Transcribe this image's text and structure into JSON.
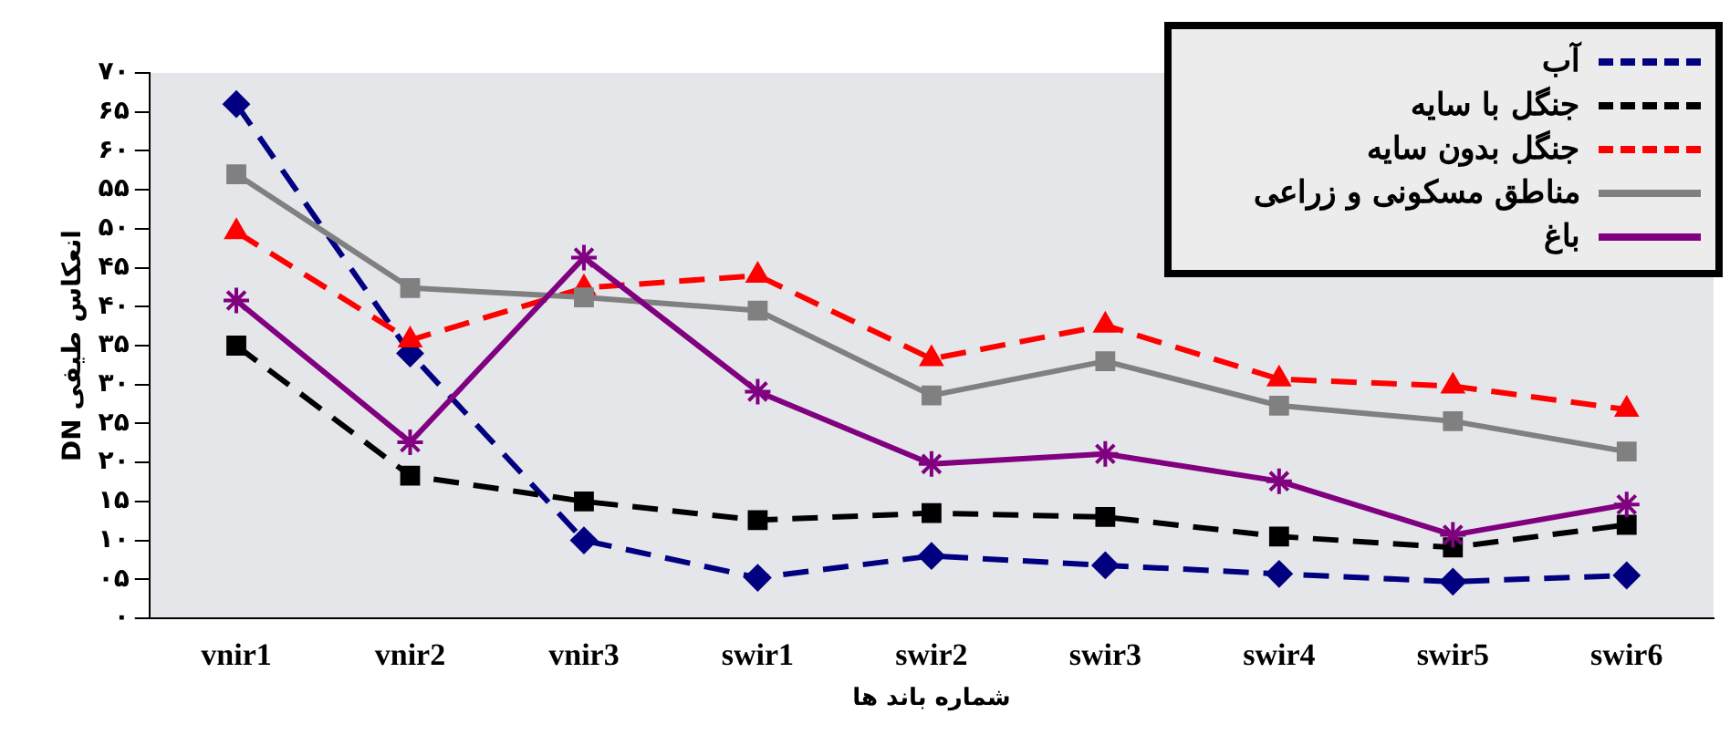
{
  "chart_data": {
    "type": "line",
    "categories": [
      "vnir1",
      "vnir2",
      "vnir3",
      "swir1",
      "swir2",
      "swir3",
      "swir4",
      "swir5",
      "swir6"
    ],
    "xlabel": "شماره باند ها",
    "ylabel": "DN انعکاس طیفی",
    "ylim": [
      0,
      70
    ],
    "yticks": [
      {
        "value": 0,
        "label": "۰"
      },
      {
        "value": 5,
        "label": "۰۵"
      },
      {
        "value": 10,
        "label": "۱۰"
      },
      {
        "value": 15,
        "label": "۱۵"
      },
      {
        "value": 20,
        "label": "۲۰"
      },
      {
        "value": 25,
        "label": "۲۵"
      },
      {
        "value": 30,
        "label": "۳۰"
      },
      {
        "value": 35,
        "label": "۳۵"
      },
      {
        "value": 40,
        "label": "۴۰"
      },
      {
        "value": 45,
        "label": "۴۵"
      },
      {
        "value": 50,
        "label": "۵۰"
      },
      {
        "value": 55,
        "label": "۵۵"
      },
      {
        "value": 60,
        "label": "۶۰"
      },
      {
        "value": 65,
        "label": "۶۵"
      },
      {
        "value": 70,
        "label": "۷۰"
      }
    ],
    "grid": false,
    "legend": "top right",
    "series": [
      {
        "name": "آب",
        "color": "#000080",
        "marker": "diamond",
        "line_style": "dashed",
        "values": [
          66,
          34,
          10,
          5.2,
          8,
          6.8,
          5.7,
          4.7,
          5.5
        ]
      },
      {
        "name": "جنگل با سایه",
        "color": "#000000",
        "marker": "square",
        "line_style": "dashed",
        "values": [
          35,
          18.3,
          15,
          12.6,
          13.5,
          13,
          10.5,
          9.1,
          12
        ]
      },
      {
        "name": "جنگل بدون سایه",
        "color": "#ff0000",
        "marker": "triangle",
        "line_style": "dashed",
        "values": [
          49.6,
          35.7,
          42.4,
          44,
          33.3,
          37.6,
          30.7,
          29.8,
          26.8
        ]
      },
      {
        "name": "مناطق مسکونی و زراعی",
        "color": "#808080",
        "marker": "square",
        "line_style": "solid",
        "values": [
          57,
          42.4,
          41.2,
          39.5,
          28.6,
          33,
          27.3,
          25.3,
          21.4
        ]
      },
      {
        "name": "باغ",
        "color": "#800080",
        "marker": "cross",
        "line_style": "solid",
        "values": [
          40.8,
          22.6,
          46.3,
          29.1,
          19.8,
          21.1,
          17.6,
          10.7,
          14.6
        ]
      }
    ]
  }
}
